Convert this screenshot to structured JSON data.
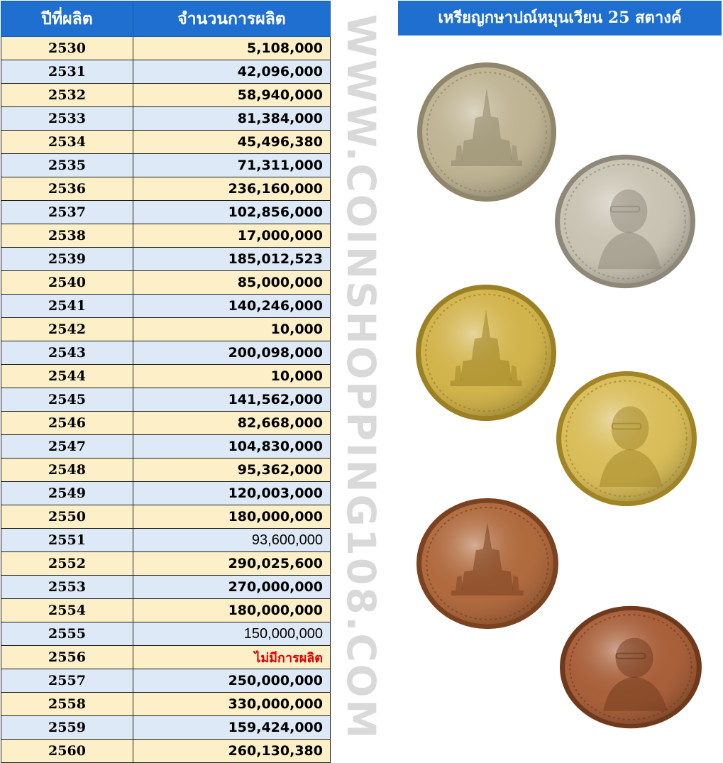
{
  "table": {
    "header_year": "ปีที่ผลิต",
    "header_quantity": "จำนวนการผลิต",
    "rows": [
      {
        "year": "2530",
        "quantity": "5,108,000"
      },
      {
        "year": "2531",
        "quantity": "42,096,000"
      },
      {
        "year": "2532",
        "quantity": "58,940,000"
      },
      {
        "year": "2533",
        "quantity": "81,384,000"
      },
      {
        "year": "2534",
        "quantity": "45,496,380"
      },
      {
        "year": "2535",
        "quantity": "71,311,000"
      },
      {
        "year": "2536",
        "quantity": "236,160,000"
      },
      {
        "year": "2537",
        "quantity": "102,856,000"
      },
      {
        "year": "2538",
        "quantity": "17,000,000"
      },
      {
        "year": "2539",
        "quantity": "185,012,523"
      },
      {
        "year": "2540",
        "quantity": "85,000,000"
      },
      {
        "year": "2541",
        "quantity": "140,246,000"
      },
      {
        "year": "2542",
        "quantity": "10,000"
      },
      {
        "year": "2543",
        "quantity": "200,098,000"
      },
      {
        "year": "2544",
        "quantity": "10,000"
      },
      {
        "year": "2545",
        "quantity": "141,562,000"
      },
      {
        "year": "2546",
        "quantity": "82,668,000"
      },
      {
        "year": "2547",
        "quantity": "104,830,000"
      },
      {
        "year": "2548",
        "quantity": "95,362,000"
      },
      {
        "year": "2549",
        "quantity": "120,003,000"
      },
      {
        "year": "2550",
        "quantity": "180,000,000"
      },
      {
        "year": "2551",
        "quantity": "93,600,000",
        "style": "plain"
      },
      {
        "year": "2552",
        "quantity": "290,025,600"
      },
      {
        "year": "2553",
        "quantity": "270,000,000"
      },
      {
        "year": "2554",
        "quantity": "180,000,000"
      },
      {
        "year": "2555",
        "quantity": "150,000,000",
        "style": "plain"
      },
      {
        "year": "2556",
        "quantity": "ไม่มีการผลิต",
        "style": "red"
      },
      {
        "year": "2557",
        "quantity": "250,000,000"
      },
      {
        "year": "2558",
        "quantity": "330,000,000"
      },
      {
        "year": "2559",
        "quantity": "159,424,000"
      },
      {
        "year": "2560",
        "quantity": "260,130,380"
      }
    ]
  },
  "watermark": "WWW.COINSHOPPING108.COM",
  "coin_panel": {
    "title": "เหรียญกษาปณ์หมุนเวียน 25 สตางค์",
    "coins": [
      {
        "name": "nickel-reverse",
        "metal": "#bfb493",
        "rim": "#8f866c",
        "side": "reverse"
      },
      {
        "name": "nickel-obverse",
        "metal": "#c9c3b3",
        "rim": "#8e887a",
        "side": "obverse"
      },
      {
        "name": "brass-reverse",
        "metal": "#d2b44c",
        "rim": "#9c8124",
        "side": "reverse"
      },
      {
        "name": "brass-obverse",
        "metal": "#d9bd5a",
        "rim": "#a08426",
        "side": "obverse"
      },
      {
        "name": "copper-reverse",
        "metal": "#b06a3e",
        "rim": "#7a4220",
        "side": "reverse"
      },
      {
        "name": "copper-obverse",
        "metal": "#a8603a",
        "rim": "#6f3a1c",
        "side": "obverse"
      }
    ]
  }
}
